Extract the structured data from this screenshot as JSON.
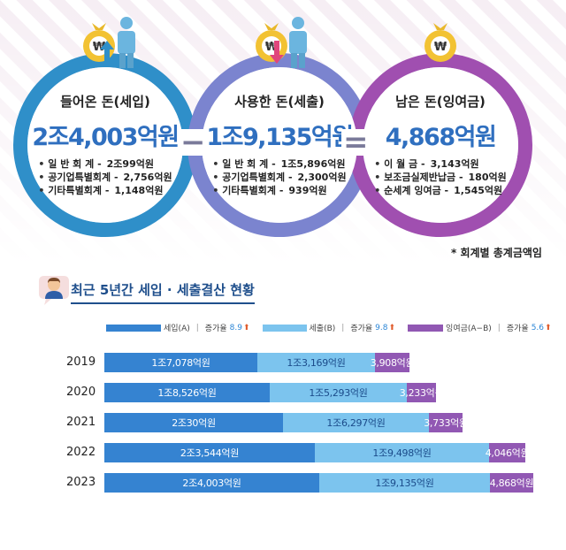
{
  "summary": {
    "income": {
      "title": "들어온 돈(세입)",
      "amount": "2조4,003억원",
      "color": "#2f8fc9",
      "items": [
        {
          "label": "일 반 회 계 -",
          "value": "2조99억원"
        },
        {
          "label": "공기업특별회계 -",
          "value": "2,756억원"
        },
        {
          "label": "기타특별회계 -",
          "value": "1,148억원"
        }
      ]
    },
    "operator_minus": "−",
    "expense": {
      "title": "사용한 돈(세출)",
      "amount": "1조9,135억원",
      "color": "#2d5fae",
      "items": [
        {
          "label": "일 반 회 계 -",
          "value": "1조5,896억원"
        },
        {
          "label": "공기업특별회계 -",
          "value": "2,300억원"
        },
        {
          "label": "기타특별회계 -",
          "value": "939억원"
        }
      ]
    },
    "operator_equals": "=",
    "surplus": {
      "title": "남은 돈(잉여금)",
      "amount": "4,868억원",
      "color": "#8a3c9e",
      "items": [
        {
          "label": "이 월 금 -",
          "value": "3,143억원"
        },
        {
          "label": "보조금실제반납금 -",
          "value": "180억원"
        },
        {
          "label": "순세계 잉여금 -",
          "value": "1,545억원"
        }
      ]
    },
    "note": "* 회계별 총계금액임"
  },
  "icons": [
    "money-bag-icon",
    "person-icon",
    "arrow-up-icon",
    "arrow-down-icon",
    "presenter-icon"
  ],
  "colors": {
    "income_bar": "#3583d1",
    "expense_bar": "#7cc4ee",
    "surplus_bar": "#9158b3",
    "ring_income": "#2f8fc9",
    "ring_expense": "#7b84cf",
    "ring_surplus": "#a04fb0"
  },
  "chart_data": {
    "type": "bar",
    "orientation": "horizontal",
    "stacked": true,
    "title": "최근 5년간 세입 · 세출결산 현황",
    "categories": [
      "2019",
      "2020",
      "2021",
      "2022",
      "2023"
    ],
    "legend": {
      "income": "세입(A)",
      "income_growth_label": "증가율",
      "income_growth": "8.9",
      "expense": "세출(B)",
      "expense_growth_label": "증가율",
      "expense_growth": "9.8",
      "surplus": "잉여금(A−B)",
      "surplus_growth_label": "증가율",
      "surplus_growth": "5.6"
    },
    "series": [
      {
        "name": "세입(A)",
        "values": [
          17078,
          18526,
          20030,
          23544,
          24003
        ],
        "labels": [
          "1조7,078억원",
          "1조8,526억원",
          "2조30억원",
          "2조3,544억원",
          "2조4,003억원"
        ]
      },
      {
        "name": "세출(B)",
        "values": [
          13169,
          15293,
          16297,
          19498,
          19135
        ],
        "labels": [
          "1조3,169억원",
          "1조5,293억원",
          "1조6,297억원",
          "1조9,498억원",
          "1조9,135억원"
        ]
      },
      {
        "name": "잉여금(A−B)",
        "values": [
          3908,
          3233,
          3733,
          4046,
          4868
        ],
        "labels": [
          "3,908억원",
          "3,233억원",
          "3,733억원",
          "4,046억원",
          "4,868억원"
        ]
      }
    ],
    "xlabel": "",
    "ylabel": ""
  }
}
